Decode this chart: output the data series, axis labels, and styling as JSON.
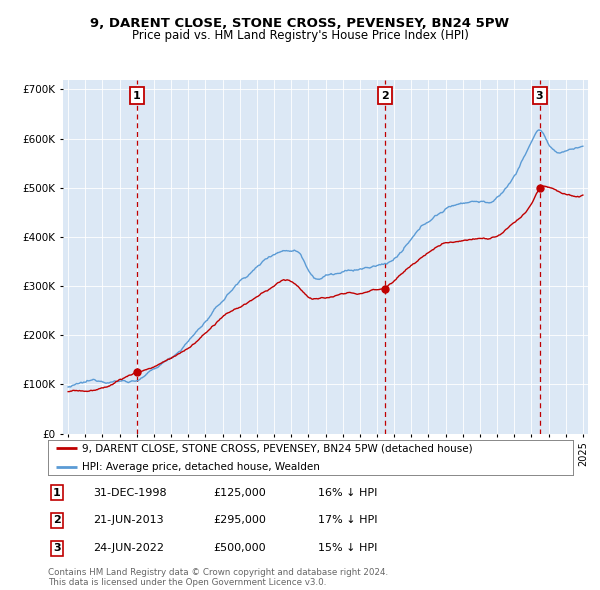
{
  "title": "9, DARENT CLOSE, STONE CROSS, PEVENSEY, BN24 5PW",
  "subtitle": "Price paid vs. HM Land Registry's House Price Index (HPI)",
  "ylim": [
    0,
    720000
  ],
  "yticks": [
    0,
    100000,
    200000,
    300000,
    400000,
    500000,
    600000,
    700000
  ],
  "xlim": [
    1994.7,
    2025.3
  ],
  "plot_bg": "#dce8f5",
  "hpi_color": "#5b9bd5",
  "price_color": "#c00000",
  "vline_color": "#c00000",
  "sale_dates": [
    1999.0,
    2013.47,
    2022.48
  ],
  "sale_prices": [
    125000,
    295000,
    500000
  ],
  "sale_labels": [
    "1",
    "2",
    "3"
  ],
  "legend_label_price": "9, DARENT CLOSE, STONE CROSS, PEVENSEY, BN24 5PW (detached house)",
  "legend_label_hpi": "HPI: Average price, detached house, Wealden",
  "table_entries": [
    {
      "num": "1",
      "date": "31-DEC-1998",
      "price": "£125,000",
      "pct": "16% ↓ HPI"
    },
    {
      "num": "2",
      "date": "21-JUN-2013",
      "price": "£295,000",
      "pct": "17% ↓ HPI"
    },
    {
      "num": "3",
      "date": "24-JUN-2022",
      "price": "£500,000",
      "pct": "15% ↓ HPI"
    }
  ],
  "footer": "Contains HM Land Registry data © Crown copyright and database right 2024.\nThis data is licensed under the Open Government Licence v3.0."
}
